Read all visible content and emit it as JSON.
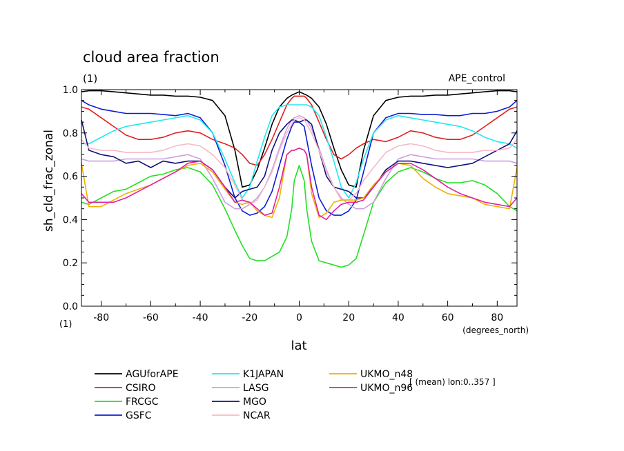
{
  "chart_data": {
    "type": "line",
    "title": "cloud area fraction",
    "subtitle": "(1)",
    "experiment": "APE_control",
    "ylabel": "sh_cld_frac_zonal",
    "xlabel": "lat",
    "y_unit": "(1)",
    "x_unit": "(degrees_north)",
    "note": "[ (mean) lon:0..357 ]",
    "xlim": [
      -88,
      88
    ],
    "ylim": [
      0,
      1
    ],
    "x_ticks": [
      -80,
      -60,
      -40,
      -20,
      0,
      20,
      40,
      60,
      80
    ],
    "x_tick_labels": [
      "-80",
      "-60",
      "-40",
      "-20",
      "0",
      "20",
      "40",
      "60",
      "80"
    ],
    "y_ticks": [
      0,
      0.2,
      0.4,
      0.6,
      0.8,
      1.0
    ],
    "y_tick_labels": [
      "0.0",
      "0.2",
      "0.4",
      "0.6",
      "0.8",
      "1.0"
    ],
    "x": [
      -88,
      -85,
      -80,
      -75,
      -70,
      -65,
      -60,
      -55,
      -50,
      -45,
      -40,
      -35,
      -30,
      -26,
      -23,
      -20,
      -17,
      -14,
      -11,
      -8,
      -5,
      -3,
      -2,
      0,
      2,
      3,
      5,
      8,
      11,
      14,
      17,
      20,
      23,
      26,
      30,
      35,
      40,
      45,
      50,
      55,
      60,
      65,
      70,
      75,
      80,
      85,
      88
    ],
    "series": [
      {
        "name": "AGUforAPE",
        "color": "#000000",
        "values": [
          0.99,
          0.995,
          0.995,
          0.99,
          0.985,
          0.98,
          0.975,
          0.975,
          0.97,
          0.97,
          0.965,
          0.95,
          0.88,
          0.72,
          0.55,
          0.56,
          0.63,
          0.73,
          0.84,
          0.92,
          0.96,
          0.975,
          0.98,
          0.99,
          0.98,
          0.975,
          0.96,
          0.92,
          0.84,
          0.73,
          0.63,
          0.56,
          0.55,
          0.72,
          0.88,
          0.95,
          0.965,
          0.97,
          0.97,
          0.975,
          0.975,
          0.98,
          0.985,
          0.99,
          0.995,
          0.995,
          0.99
        ]
      },
      {
        "name": "CSIRO",
        "color": "#e02020",
        "values": [
          0.92,
          0.91,
          0.87,
          0.83,
          0.79,
          0.77,
          0.77,
          0.78,
          0.8,
          0.81,
          0.8,
          0.77,
          0.75,
          0.73,
          0.7,
          0.66,
          0.65,
          0.7,
          0.77,
          0.85,
          0.93,
          0.96,
          0.97,
          0.97,
          0.97,
          0.96,
          0.93,
          0.85,
          0.77,
          0.7,
          0.68,
          0.7,
          0.73,
          0.75,
          0.77,
          0.76,
          0.78,
          0.81,
          0.8,
          0.78,
          0.77,
          0.77,
          0.79,
          0.83,
          0.87,
          0.91,
          0.92
        ]
      },
      {
        "name": "FRCGC",
        "color": "#22e022",
        "values": [
          0.48,
          0.47,
          0.5,
          0.53,
          0.54,
          0.57,
          0.6,
          0.61,
          0.63,
          0.64,
          0.62,
          0.56,
          0.45,
          0.35,
          0.28,
          0.22,
          0.21,
          0.21,
          0.23,
          0.25,
          0.32,
          0.45,
          0.58,
          0.65,
          0.58,
          0.45,
          0.3,
          0.21,
          0.2,
          0.19,
          0.18,
          0.19,
          0.22,
          0.33,
          0.48,
          0.57,
          0.62,
          0.64,
          0.62,
          0.59,
          0.57,
          0.57,
          0.58,
          0.56,
          0.52,
          0.46,
          0.44
        ]
      },
      {
        "name": "GSFC",
        "color": "#0c1ed0",
        "values": [
          0.95,
          0.93,
          0.91,
          0.9,
          0.89,
          0.89,
          0.89,
          0.885,
          0.88,
          0.89,
          0.87,
          0.8,
          0.65,
          0.5,
          0.44,
          0.42,
          0.43,
          0.46,
          0.53,
          0.65,
          0.77,
          0.83,
          0.85,
          0.85,
          0.83,
          0.77,
          0.65,
          0.5,
          0.44,
          0.42,
          0.42,
          0.44,
          0.49,
          0.62,
          0.8,
          0.87,
          0.89,
          0.89,
          0.885,
          0.885,
          0.88,
          0.88,
          0.89,
          0.89,
          0.9,
          0.92,
          0.95
        ]
      },
      {
        "name": "K1JAPAN",
        "color": "#20e8f0",
        "values": [
          0.75,
          0.75,
          0.78,
          0.81,
          0.83,
          0.84,
          0.85,
          0.86,
          0.87,
          0.88,
          0.86,
          0.8,
          0.68,
          0.57,
          0.5,
          0.55,
          0.67,
          0.78,
          0.88,
          0.92,
          0.93,
          0.93,
          0.93,
          0.93,
          0.93,
          0.93,
          0.92,
          0.88,
          0.78,
          0.67,
          0.55,
          0.5,
          0.57,
          0.68,
          0.8,
          0.86,
          0.88,
          0.87,
          0.86,
          0.85,
          0.84,
          0.83,
          0.81,
          0.78,
          0.76,
          0.75,
          0.73
        ]
      },
      {
        "name": "LASG",
        "color": "#c8a0e0",
        "values": [
          0.68,
          0.67,
          0.67,
          0.67,
          0.68,
          0.68,
          0.68,
          0.68,
          0.69,
          0.7,
          0.68,
          0.59,
          0.48,
          0.45,
          0.45,
          0.47,
          0.5,
          0.55,
          0.63,
          0.73,
          0.82,
          0.86,
          0.87,
          0.88,
          0.87,
          0.86,
          0.82,
          0.73,
          0.63,
          0.55,
          0.5,
          0.47,
          0.45,
          0.45,
          0.48,
          0.59,
          0.68,
          0.7,
          0.69,
          0.68,
          0.68,
          0.68,
          0.68,
          0.67,
          0.67,
          0.67,
          0.66
        ]
      },
      {
        "name": "MGO",
        "color": "#101080",
        "values": [
          0.86,
          0.72,
          0.7,
          0.69,
          0.66,
          0.67,
          0.64,
          0.67,
          0.66,
          0.67,
          0.67,
          0.63,
          0.55,
          0.5,
          0.53,
          0.54,
          0.55,
          0.6,
          0.72,
          0.8,
          0.84,
          0.86,
          0.86,
          0.85,
          0.86,
          0.86,
          0.84,
          0.72,
          0.6,
          0.55,
          0.54,
          0.53,
          0.5,
          0.5,
          0.55,
          0.63,
          0.67,
          0.67,
          0.66,
          0.65,
          0.64,
          0.65,
          0.66,
          0.69,
          0.72,
          0.75,
          0.81
        ]
      },
      {
        "name": "NCAR",
        "color": "#f8b8c8",
        "values": [
          0.77,
          0.73,
          0.72,
          0.72,
          0.71,
          0.71,
          0.71,
          0.72,
          0.74,
          0.75,
          0.74,
          0.7,
          0.64,
          0.56,
          0.49,
          0.47,
          0.49,
          0.55,
          0.62,
          0.72,
          0.8,
          0.84,
          0.86,
          0.87,
          0.86,
          0.84,
          0.8,
          0.72,
          0.62,
          0.55,
          0.49,
          0.49,
          0.52,
          0.58,
          0.64,
          0.71,
          0.74,
          0.75,
          0.74,
          0.72,
          0.71,
          0.71,
          0.71,
          0.72,
          0.72,
          0.73,
          0.77
        ]
      },
      {
        "name": "UKMO_n48",
        "color": "#f0b000",
        "values": [
          0.66,
          0.46,
          0.46,
          0.49,
          0.52,
          0.54,
          0.56,
          0.59,
          0.62,
          0.65,
          0.66,
          0.62,
          0.54,
          0.48,
          0.47,
          0.48,
          0.44,
          0.42,
          0.41,
          0.5,
          0.7,
          0.72,
          0.72,
          0.73,
          0.72,
          0.7,
          0.52,
          0.41,
          0.43,
          0.48,
          0.49,
          0.49,
          0.49,
          0.5,
          0.56,
          0.62,
          0.66,
          0.65,
          0.59,
          0.55,
          0.52,
          0.51,
          0.5,
          0.47,
          0.46,
          0.45,
          0.64
        ]
      },
      {
        "name": "UKMO_n96",
        "color": "#e020a0",
        "values": [
          0.52,
          0.48,
          0.48,
          0.48,
          0.5,
          0.53,
          0.56,
          0.59,
          0.62,
          0.66,
          0.67,
          0.63,
          0.55,
          0.48,
          0.49,
          0.48,
          0.45,
          0.42,
          0.43,
          0.55,
          0.7,
          0.72,
          0.72,
          0.73,
          0.72,
          0.7,
          0.55,
          0.42,
          0.4,
          0.44,
          0.47,
          0.48,
          0.48,
          0.49,
          0.55,
          0.62,
          0.66,
          0.66,
          0.63,
          0.59,
          0.55,
          0.52,
          0.5,
          0.48,
          0.47,
          0.46,
          0.5
        ]
      }
    ]
  }
}
